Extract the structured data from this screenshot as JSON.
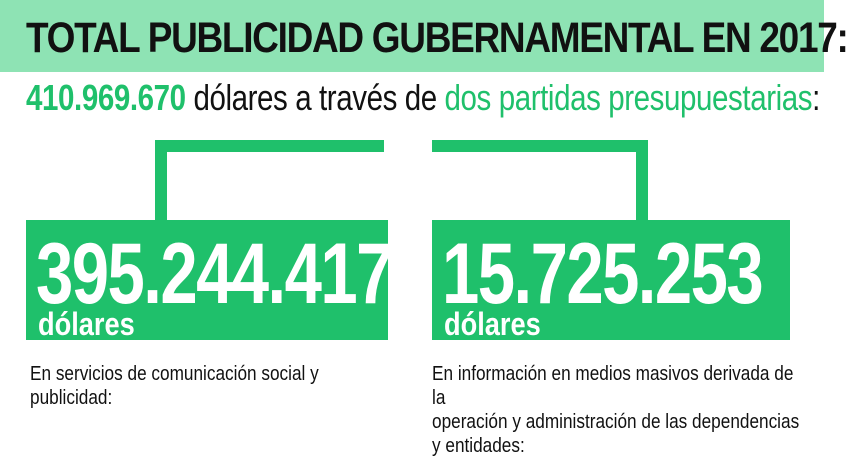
{
  "header": {
    "title": "TOTAL PUBLICIDAD GUBERNAMENTAL EN 2017:"
  },
  "summary": {
    "amount": "410.969.670",
    "text_before": "dólares a través de",
    "highlight": "dos partidas presupuestarias",
    "text_after": ":"
  },
  "items": [
    {
      "amount": "395.244.417",
      "unit": "dólares",
      "description": "En servicios de comunicación social y publicidad:"
    },
    {
      "amount": "15.725.253",
      "unit": "dólares",
      "description_lines": [
        "En información en medios masivos derivada de la",
        "operación y administración de las dependencias",
        "y entidades:"
      ]
    }
  ],
  "colors": {
    "accent_green": "#1fc06b",
    "header_band": "#8ee3b4",
    "text": "#111111"
  }
}
